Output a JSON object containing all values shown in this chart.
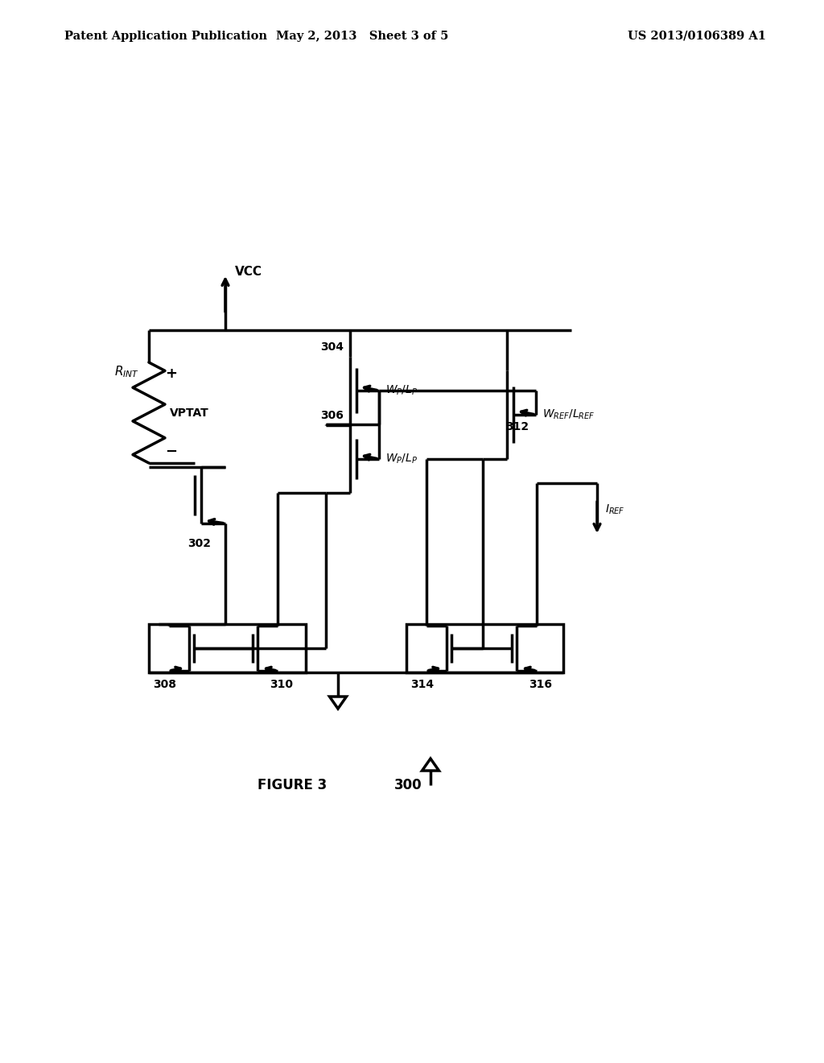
{
  "bg_color": "#ffffff",
  "lw": 2.5,
  "header_left": "Patent Application Publication",
  "header_mid": "May 2, 2013   Sheet 3 of 5",
  "header_right": "US 2013/0106389 A1",
  "fig_label": "FIGURE 3",
  "fig_num": "300"
}
